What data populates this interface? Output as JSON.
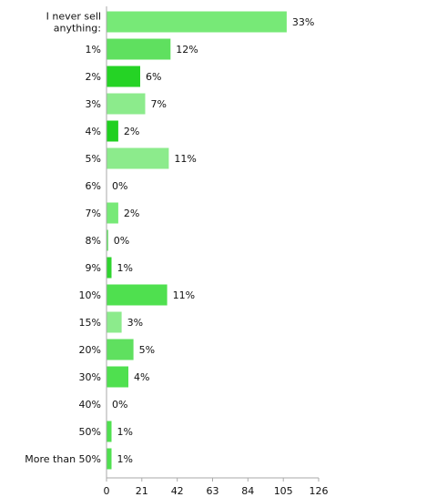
{
  "chart_data": {
    "type": "bar",
    "orientation": "horizontal",
    "title": "",
    "xlabel": "",
    "ylabel": "",
    "categories": [
      [
        "I never sell",
        "anything:"
      ],
      [
        "1%"
      ],
      [
        "2%"
      ],
      [
        "3%"
      ],
      [
        "4%"
      ],
      [
        "5%"
      ],
      [
        "6%"
      ],
      [
        "7%"
      ],
      [
        "8%"
      ],
      [
        "9%"
      ],
      [
        "10%"
      ],
      [
        "15%"
      ],
      [
        "20%"
      ],
      [
        "30%"
      ],
      [
        "40%"
      ],
      [
        "50%"
      ],
      [
        "More than 50%"
      ]
    ],
    "values": [
      107,
      38,
      20,
      23,
      7,
      37,
      0,
      7,
      1,
      3,
      36,
      9,
      16,
      13,
      0,
      3,
      3
    ],
    "value_labels": [
      "33%",
      "12%",
      "6%",
      "7%",
      "2%",
      "11%",
      "0%",
      "2%",
      "0%",
      "1%",
      "11%",
      "3%",
      "5%",
      "4%",
      "0%",
      "1%",
      "1%"
    ],
    "bar_colors": [
      "#77e977",
      "#5fe05f",
      "#25d325",
      "#8ceb8c",
      "#20d020",
      "#8ceb8c",
      "#5fe05f",
      "#77e977",
      "#5fe05f",
      "#2fd42f",
      "#4fe04f",
      "#8ceb8c",
      "#5fe05f",
      "#4fe04f",
      "#5fe05f",
      "#4fe04f",
      "#4fe04f"
    ],
    "xlim": [
      0,
      126
    ],
    "xticks": [
      "0",
      "21",
      "42",
      "63",
      "84",
      "105",
      "126"
    ],
    "grid": false,
    "axis_color": "#aaaaaa"
  }
}
